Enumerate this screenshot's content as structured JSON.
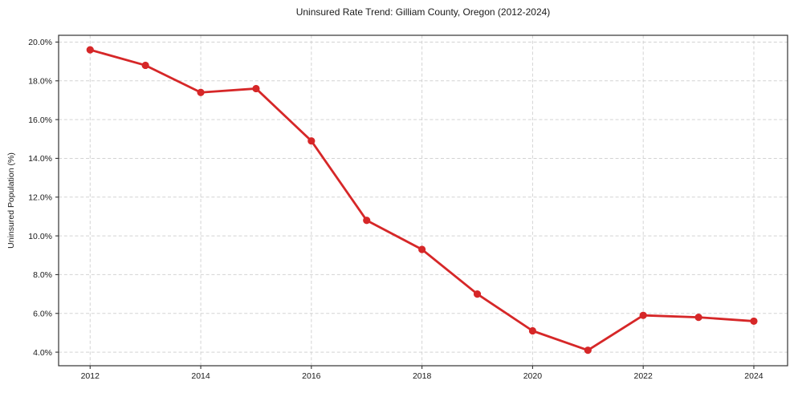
{
  "chart_data": {
    "type": "line",
    "title": "Uninsured Rate Trend: Gilliam County, Oregon (2012-2024)",
    "xlabel": "",
    "ylabel": "Uninsured Population (%)",
    "x": [
      2012,
      2013,
      2014,
      2015,
      2016,
      2017,
      2018,
      2019,
      2020,
      2021,
      2022,
      2023,
      2024
    ],
    "series": [
      {
        "name": "Uninsured rate",
        "color": "#d62728",
        "values": [
          19.6,
          18.8,
          17.4,
          17.6,
          14.9,
          10.8,
          9.3,
          7.0,
          5.1,
          4.1,
          5.9,
          5.8,
          5.6
        ]
      }
    ],
    "xticks": {
      "values": [
        2012,
        2014,
        2016,
        2018,
        2020,
        2022,
        2024
      ],
      "labels": [
        "2012",
        "2014",
        "2016",
        "2018",
        "2020",
        "2022",
        "2024"
      ]
    },
    "yticks": {
      "values": [
        4,
        6,
        8,
        10,
        12,
        14,
        16,
        18,
        20
      ],
      "labels": [
        "4.0%",
        "6.0%",
        "8.0%",
        "10.0%",
        "12.0%",
        "14.0%",
        "16.0%",
        "18.0%",
        "20.0%"
      ]
    },
    "xlim": [
      2011.43,
      2024.61
    ],
    "ylim": [
      3.3,
      20.35
    ],
    "grid": true,
    "grid_style": "dashed",
    "grid_color": "#cccccc",
    "spine_color": "#333333",
    "marker": "circle",
    "legend": "none"
  }
}
